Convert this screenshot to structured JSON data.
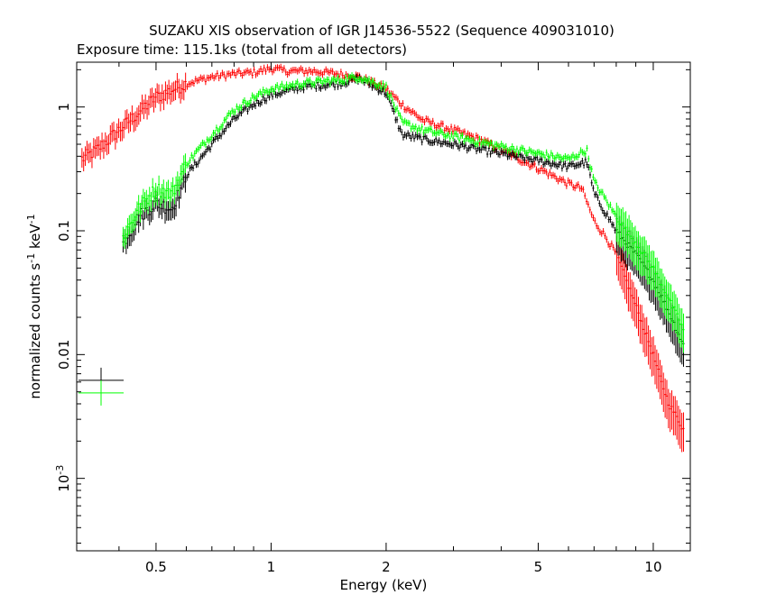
{
  "chart_data": {
    "type": "scatter",
    "title": "SUZAKU XIS observation of IGR J14536-5522 (Sequence 409031010)",
    "subtitle": "Exposure time: 115.1ks (total from all detectors)",
    "xlabel": "Energy (keV)",
    "ylabel": "normalized counts s",
    "ylabel_sup1": "-1",
    "ylabel_mid": " keV",
    "ylabel_sup2": "-1",
    "x_scale": "log",
    "y_scale": "log",
    "xlim": [
      0.31,
      12.5
    ],
    "ylim": [
      0.00026,
      2.3
    ],
    "x_ticks": [
      {
        "value": 0.5,
        "label": "0.5"
      },
      {
        "value": 1,
        "label": "1"
      },
      {
        "value": 2,
        "label": "2"
      },
      {
        "value": 5,
        "label": "5"
      },
      {
        "value": 10,
        "label": "10"
      }
    ],
    "y_ticks": [
      {
        "value": 1,
        "label": "1",
        "sup": ""
      },
      {
        "value": 0.1,
        "label": "0.1",
        "sup": ""
      },
      {
        "value": 0.01,
        "label": "0.01",
        "sup": ""
      },
      {
        "value": 0.001,
        "label": "10",
        "sup": "-3"
      }
    ],
    "grid": false,
    "series": [
      {
        "color": "#ff0000",
        "x": [
          0.32,
          0.35,
          0.4,
          0.45,
          0.5,
          0.6,
          0.7,
          0.8,
          0.9,
          1.0,
          1.1,
          1.3,
          1.5,
          1.7,
          2.0,
          2.2,
          2.5,
          3.0,
          3.5,
          4.0,
          5.0,
          6.0,
          6.5,
          7.0,
          7.5,
          8.0,
          9.0,
          10.0,
          10.5,
          11.0,
          12.0
        ],
        "y": [
          0.38,
          0.45,
          0.65,
          0.9,
          1.2,
          1.55,
          1.75,
          1.85,
          1.9,
          2.05,
          1.95,
          1.95,
          1.85,
          1.75,
          1.4,
          1.05,
          0.78,
          0.65,
          0.55,
          0.45,
          0.32,
          0.24,
          0.22,
          0.12,
          0.09,
          0.065,
          0.025,
          0.01,
          0.006,
          0.004,
          0.0025
        ]
      },
      {
        "color": "#000000",
        "x": [
          0.41,
          0.45,
          0.5,
          0.55,
          0.6,
          0.7,
          0.8,
          0.9,
          1.0,
          1.2,
          1.5,
          1.7,
          2.0,
          2.2,
          2.5,
          3.0,
          4.0,
          5.0,
          6.0,
          6.7,
          7.0,
          7.5,
          8.0,
          9.0,
          10.0,
          11.0,
          12.0
        ],
        "y": [
          0.08,
          0.13,
          0.17,
          0.15,
          0.28,
          0.5,
          0.8,
          1.05,
          1.25,
          1.45,
          1.55,
          1.7,
          1.3,
          0.6,
          0.55,
          0.5,
          0.42,
          0.37,
          0.33,
          0.36,
          0.2,
          0.14,
          0.1,
          0.065,
          0.04,
          0.022,
          0.012
        ]
      },
      {
        "color": "#00ff00",
        "x": [
          0.41,
          0.45,
          0.5,
          0.55,
          0.6,
          0.7,
          0.8,
          0.9,
          1.0,
          1.2,
          1.5,
          1.7,
          2.0,
          2.2,
          2.5,
          3.0,
          4.0,
          5.0,
          6.0,
          6.7,
          7.0,
          7.5,
          8.0,
          9.0,
          10.0,
          11.0,
          12.0
        ],
        "y": [
          0.09,
          0.15,
          0.22,
          0.2,
          0.35,
          0.6,
          0.95,
          1.2,
          1.4,
          1.55,
          1.65,
          1.75,
          1.45,
          0.75,
          0.65,
          0.58,
          0.48,
          0.42,
          0.38,
          0.45,
          0.25,
          0.18,
          0.13,
          0.08,
          0.05,
          0.028,
          0.016
        ]
      }
    ],
    "legend_errors": [
      {
        "color": "#000000",
        "y": 0.0062
      },
      {
        "color": "#00ff00",
        "y": 0.0049
      }
    ]
  }
}
